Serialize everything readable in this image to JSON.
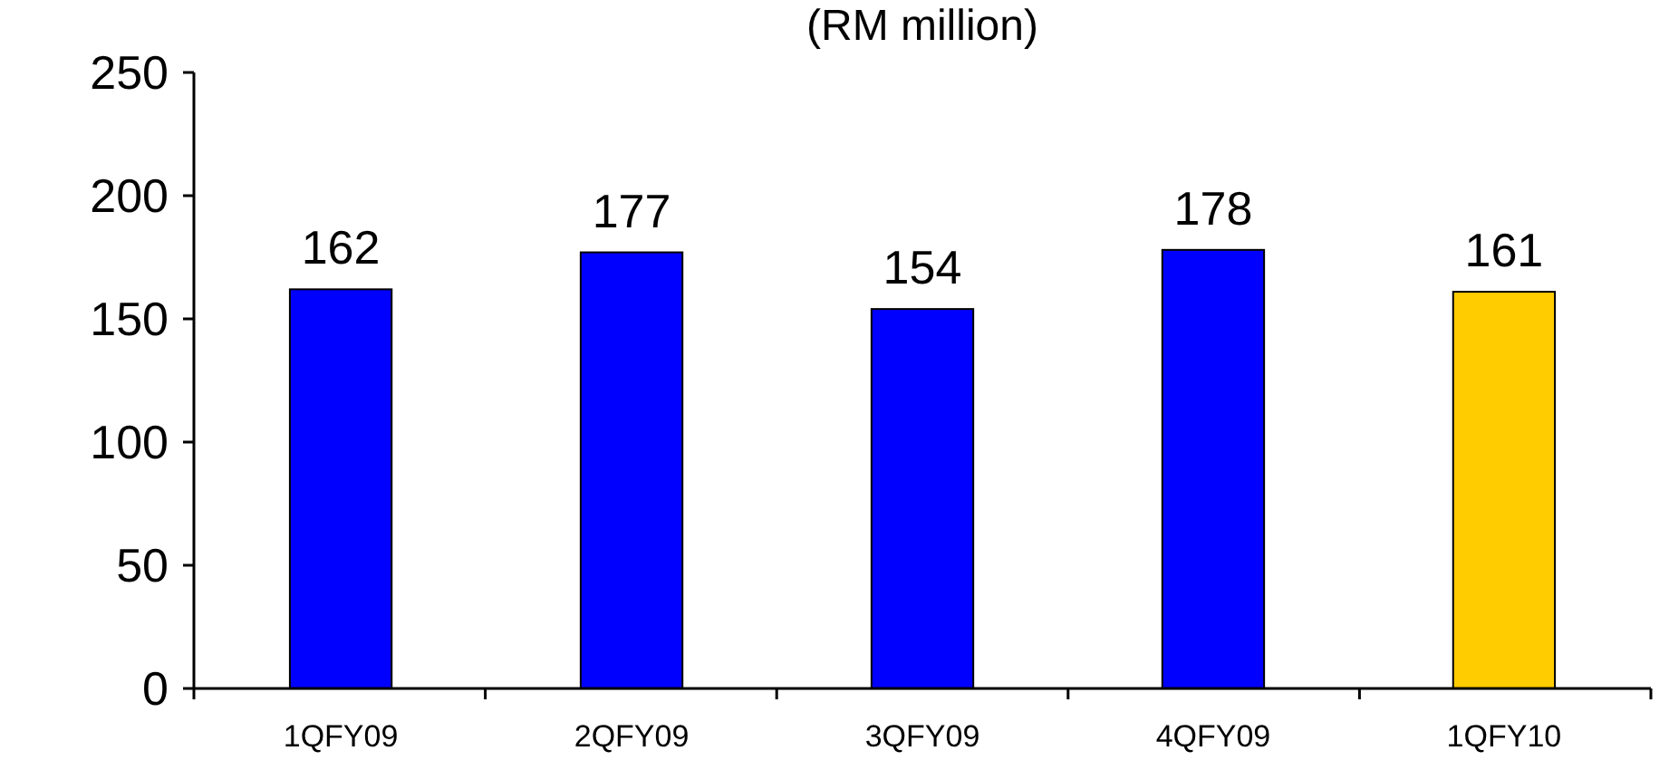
{
  "chart_data": {
    "type": "bar",
    "title": "(RM million)",
    "categories": [
      "1QFY09",
      "2QFY09",
      "3QFY09",
      "4QFY09",
      "1QFY10"
    ],
    "values": [
      162,
      177,
      154,
      178,
      161
    ],
    "colors": [
      "#0000ff",
      "#0000ff",
      "#0000ff",
      "#0000ff",
      "#ffcc00"
    ],
    "ylim": [
      0,
      250
    ],
    "yticks": [
      0,
      50,
      100,
      150,
      200,
      250
    ],
    "data_labels": true
  }
}
